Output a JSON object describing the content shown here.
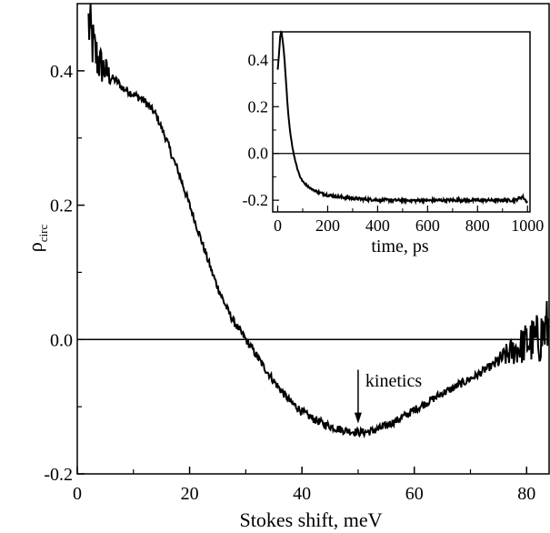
{
  "chart_data": [
    {
      "type": "line",
      "xlabel": "Stokes shift, meV",
      "ylabel": "ρ",
      "ylabel_sub": "circ",
      "xlim": [
        0,
        84
      ],
      "ylim": [
        -0.2,
        0.5
      ],
      "xticks": [
        "0",
        "20",
        "40",
        "60",
        "80"
      ],
      "yticks": [
        "-0.2",
        "0.0",
        "0.2",
        "0.4"
      ],
      "reference_line_y": 0.0,
      "annotation": {
        "text": "kinetics",
        "x": 50,
        "arrow_to_y": -0.125
      },
      "series": [
        {
          "x": [
            2,
            2.5,
            3,
            4,
            5,
            6,
            7,
            8,
            9,
            10,
            11,
            12,
            13,
            14,
            15,
            16,
            17,
            18,
            19,
            20,
            21,
            22,
            23,
            24,
            25,
            26,
            27,
            28,
            29,
            30,
            31,
            32,
            33,
            34,
            35,
            36,
            37,
            38,
            39,
            40,
            41,
            42,
            43,
            44,
            45,
            46,
            47,
            48,
            49,
            50,
            51,
            52,
            53,
            54,
            55,
            56,
            57,
            58,
            59,
            60,
            61,
            62,
            63,
            64,
            65,
            66,
            67,
            68,
            69,
            70,
            71,
            72,
            73,
            74,
            75,
            76,
            77,
            78,
            79,
            80,
            81,
            82,
            83,
            84
          ],
          "values": [
            0.47,
            0.45,
            0.43,
            0.41,
            0.4,
            0.39,
            0.385,
            0.375,
            0.37,
            0.365,
            0.36,
            0.355,
            0.345,
            0.335,
            0.315,
            0.295,
            0.27,
            0.25,
            0.225,
            0.2,
            0.175,
            0.15,
            0.125,
            0.1,
            0.078,
            0.058,
            0.04,
            0.025,
            0.012,
            0.0,
            -0.012,
            -0.025,
            -0.038,
            -0.05,
            -0.062,
            -0.073,
            -0.083,
            -0.093,
            -0.1,
            -0.107,
            -0.113,
            -0.118,
            -0.122,
            -0.126,
            -0.129,
            -0.132,
            -0.134,
            -0.136,
            -0.137,
            -0.138,
            -0.138,
            -0.137,
            -0.135,
            -0.132,
            -0.128,
            -0.124,
            -0.12,
            -0.115,
            -0.11,
            -0.105,
            -0.1,
            -0.095,
            -0.09,
            -0.085,
            -0.08,
            -0.076,
            -0.072,
            -0.067,
            -0.063,
            -0.058,
            -0.054,
            -0.048,
            -0.043,
            -0.038,
            -0.032,
            -0.026,
            -0.02,
            -0.015,
            -0.01,
            -0.005,
            -0.002,
            0.0,
            0.01,
            0.02
          ]
        }
      ]
    },
    {
      "type": "line",
      "xlabel": "time, ps",
      "xlim": [
        -20,
        1010
      ],
      "ylim": [
        -0.25,
        0.52
      ],
      "xticks": [
        "0",
        "200",
        "400",
        "600",
        "800",
        "1000"
      ],
      "yticks": [
        "-0.2",
        "0.0",
        "0.2",
        "0.4"
      ],
      "reference_line_y": 0.0,
      "series": [
        {
          "x": [
            0,
            5,
            10,
            15,
            20,
            25,
            30,
            35,
            40,
            45,
            50,
            60,
            70,
            80,
            90,
            100,
            120,
            140,
            160,
            180,
            200,
            250,
            300,
            350,
            400,
            450,
            500,
            550,
            600,
            650,
            700,
            750,
            800,
            850,
            900,
            950,
            980,
            1000
          ],
          "values": [
            0.36,
            0.42,
            0.5,
            0.52,
            0.48,
            0.43,
            0.36,
            0.28,
            0.2,
            0.14,
            0.09,
            0.02,
            -0.03,
            -0.07,
            -0.1,
            -0.12,
            -0.14,
            -0.155,
            -0.165,
            -0.172,
            -0.178,
            -0.186,
            -0.192,
            -0.196,
            -0.198,
            -0.2,
            -0.2,
            -0.201,
            -0.201,
            -0.2,
            -0.2,
            -0.2,
            -0.2,
            -0.2,
            -0.2,
            -0.2,
            -0.185,
            -0.21
          ]
        }
      ]
    }
  ]
}
